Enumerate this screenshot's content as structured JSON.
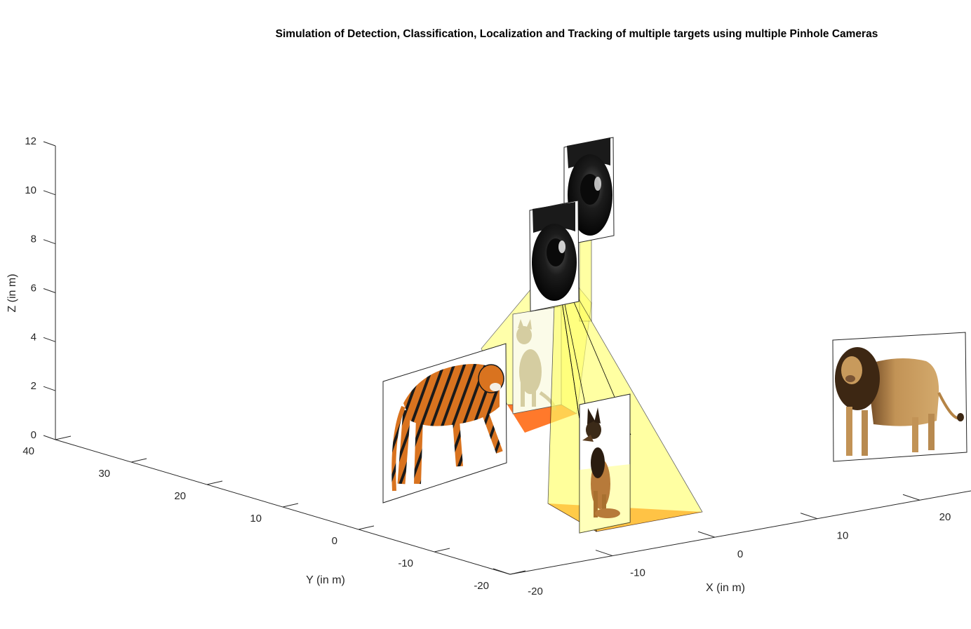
{
  "chart_data": {
    "type": "3d-scene",
    "title": "Simulation of Detection, Classification, Localization and Tracking of multiple targets using multiple Pinhole Cameras",
    "xlabel": "X (in m)",
    "ylabel": "Y (in m)",
    "zlabel": "Z (in m)",
    "x_ticks": [
      "-20",
      "-10",
      "0",
      "10",
      "20"
    ],
    "y_ticks": [
      "-20",
      "-10",
      "0",
      "10",
      "20",
      "30",
      "40"
    ],
    "z_ticks": [
      "0",
      "2",
      "4",
      "6",
      "8",
      "10",
      "12"
    ],
    "xlim": [
      -20,
      25
    ],
    "ylim": [
      -20,
      40
    ],
    "zlim": [
      0,
      12
    ],
    "grid": false,
    "cameras": [
      "camera-1",
      "camera-2"
    ],
    "targets": [
      "tiger",
      "cat",
      "dog",
      "lion"
    ],
    "colors": {
      "axis": "#262626",
      "fov_fill": "#ffff66",
      "footprint_fill": "#ff6a14",
      "camera_body": "#151515",
      "tiger_orange": "#d9731f",
      "lion_tan": "#c79a5a",
      "dog_tan": "#b77a3a"
    }
  }
}
